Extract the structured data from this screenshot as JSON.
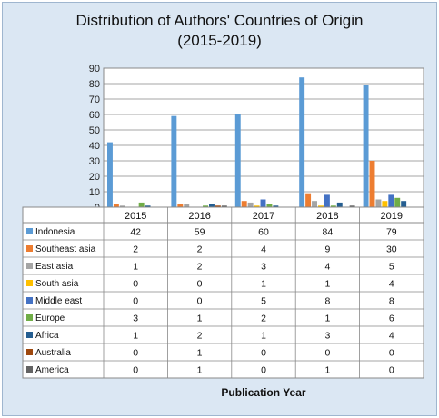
{
  "chart_data": {
    "type": "bar",
    "title": "Distribution of Authors' Countries of Origin\n(2015-2019)",
    "xlabel": "Publication Year",
    "ylabel": "",
    "ylim": [
      0,
      90
    ],
    "yticks": [
      0,
      10,
      20,
      30,
      40,
      50,
      60,
      70,
      80,
      90
    ],
    "grid": true,
    "legend": "data-table",
    "categories": [
      "2015",
      "2016",
      "2017",
      "2018",
      "2019"
    ],
    "series": [
      {
        "name": "Indonesia",
        "color": "#5b9bd5",
        "values": [
          42,
          59,
          60,
          84,
          79
        ]
      },
      {
        "name": "Southeast asia",
        "color": "#ed7d31",
        "values": [
          2,
          2,
          4,
          9,
          30
        ]
      },
      {
        "name": "East asia",
        "color": "#a5a5a5",
        "values": [
          1,
          2,
          3,
          4,
          5
        ]
      },
      {
        "name": "South asia",
        "color": "#ffc000",
        "values": [
          0,
          0,
          1,
          1,
          4
        ]
      },
      {
        "name": "Middle east",
        "color": "#4472c4",
        "values": [
          0,
          0,
          5,
          8,
          8
        ]
      },
      {
        "name": "Europe",
        "color": "#70ad47",
        "values": [
          3,
          1,
          2,
          1,
          6
        ]
      },
      {
        "name": "Africa",
        "color": "#255e91",
        "values": [
          1,
          2,
          1,
          3,
          4
        ]
      },
      {
        "name": "Australia",
        "color": "#9e480e",
        "values": [
          0,
          1,
          0,
          0,
          0
        ]
      },
      {
        "name": "America",
        "color": "#636363",
        "values": [
          0,
          1,
          0,
          1,
          0
        ]
      }
    ]
  }
}
